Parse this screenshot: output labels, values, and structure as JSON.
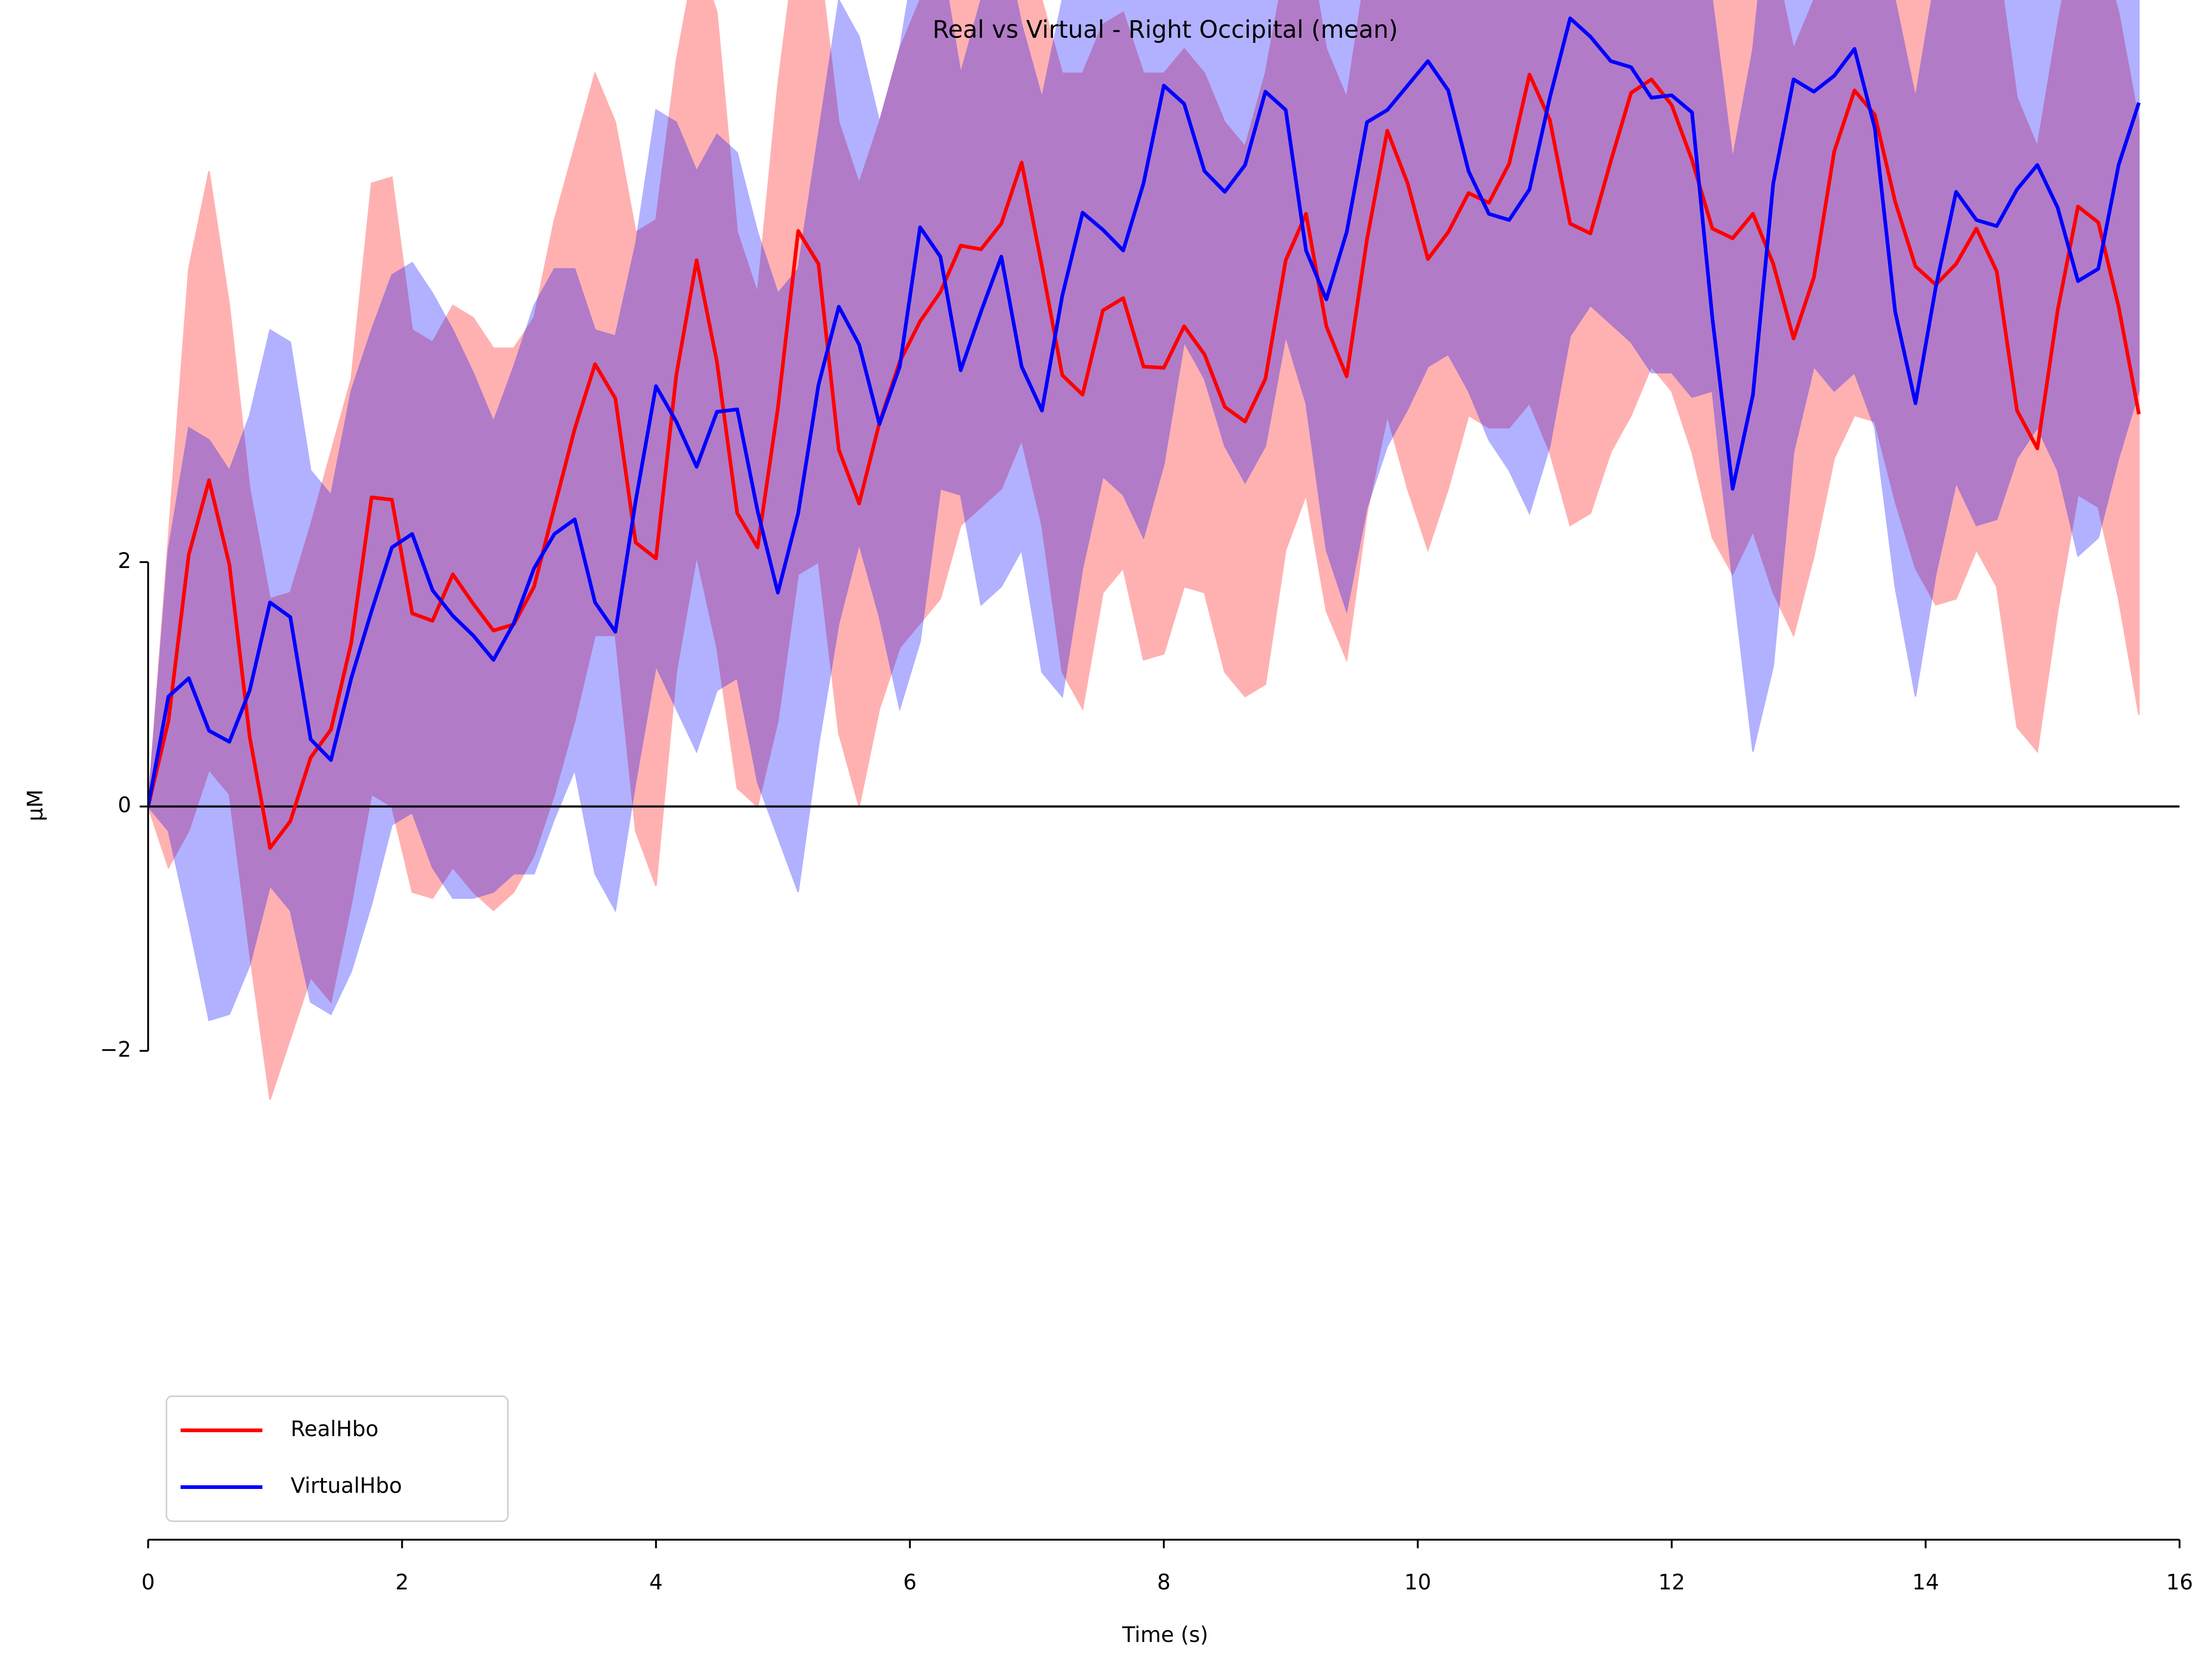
{
  "chart_data": {
    "type": "line",
    "title": "Real vs Virtual - Right Occipital (mean)",
    "xlabel": "Time (s)",
    "ylabel": "µM",
    "x": [
      0,
      0.16,
      0.32,
      0.48,
      0.64,
      0.8,
      0.96,
      1.12,
      1.28,
      1.44,
      1.6,
      1.76,
      1.92,
      2.08,
      2.24,
      2.4,
      2.56,
      2.72,
      2.88,
      3.04,
      3.2,
      3.36,
      3.52,
      3.68,
      3.84,
      4,
      4.16,
      4.32,
      4.48,
      4.64,
      4.8,
      4.96,
      5.12,
      5.28,
      5.44,
      5.6,
      5.76,
      5.92,
      6.08,
      6.24,
      6.4,
      6.56,
      6.72,
      6.88,
      7.04,
      7.2,
      7.36,
      7.52,
      7.68,
      7.84,
      8,
      8.16,
      8.32,
      8.48,
      8.64,
      8.8,
      8.96,
      9.12,
      9.28,
      9.44,
      9.6,
      9.76,
      9.92,
      10.08,
      10.24,
      10.4,
      10.56,
      10.72,
      10.88,
      11.04,
      11.2,
      11.36,
      11.52,
      11.68,
      11.84,
      12,
      12.16,
      12.32,
      12.48,
      12.64,
      12.8,
      12.96,
      13.12,
      13.28,
      13.44,
      13.6,
      13.76,
      13.92,
      14.08,
      14.24,
      14.4,
      14.56,
      14.72,
      14.88,
      15.04,
      15.2,
      15.36,
      15.52,
      15.68
    ],
    "series": [
      {
        "name": "RealHbo",
        "color": "#ff0000",
        "values": [
          0,
          0.7,
          2.06,
          2.67,
          1.98,
          0.57,
          -0.34,
          -0.12,
          0.4,
          0.63,
          1.34,
          2.53,
          2.51,
          1.58,
          1.52,
          1.9,
          1.66,
          1.44,
          1.49,
          1.8,
          2.45,
          3.09,
          3.62,
          3.34,
          2.16,
          2.03,
          3.53,
          4.47,
          3.64,
          2.4,
          2.12,
          3.26,
          4.71,
          4.44,
          2.92,
          2.48,
          3.14,
          3.64,
          3.97,
          4.21,
          4.59,
          4.56,
          4.77,
          5.27,
          4.42,
          3.53,
          3.37,
          4.06,
          4.16,
          3.6,
          3.59,
          3.93,
          3.7,
          3.27,
          3.15,
          3.5,
          4.47,
          4.85,
          3.93,
          3.52,
          4.64,
          5.53,
          5.1,
          4.48,
          4.7,
          5.02,
          4.94,
          5.26,
          5.99,
          5.62,
          4.77,
          4.69,
          5.28,
          5.84,
          5.95,
          5.74,
          5.29,
          4.73,
          4.65,
          4.85,
          4.44,
          3.83,
          4.33,
          5.36,
          5.86,
          5.66,
          4.95,
          4.42,
          4.27,
          4.44,
          4.73,
          4.38,
          3.24,
          2.93,
          4.06,
          4.91,
          4.78,
          4.09,
          3.21
        ],
        "ci_lower": [
          0,
          -0.5,
          -0.2,
          0.3,
          0.1,
          -1.2,
          -2.4,
          -1.9,
          -1.4,
          -1.6,
          -0.8,
          0.1,
          0,
          -0.7,
          -0.75,
          -0.5,
          -0.7,
          -0.85,
          -0.7,
          -0.4,
          0.1,
          0.7,
          1.4,
          1.4,
          -0.2,
          -0.65,
          1.1,
          2.05,
          1.3,
          0.15,
          0,
          0.7,
          1.9,
          2,
          0.6,
          0,
          0.8,
          1.3,
          1.5,
          1.7,
          2.3,
          2.45,
          2.6,
          3,
          2.3,
          1.1,
          0.8,
          1.75,
          1.95,
          1.2,
          1.25,
          1.8,
          1.75,
          1.1,
          0.9,
          1,
          2.1,
          2.55,
          1.6,
          1.2,
          2.4,
          3.2,
          2.6,
          2.1,
          2.6,
          3.2,
          3.1,
          3.1,
          3.3,
          2.9,
          2.3,
          2.4,
          2.9,
          3.2,
          3.6,
          3.4,
          2.9,
          2.2,
          1.9,
          2.25,
          1.75,
          1.4,
          2.05,
          2.85,
          3.2,
          3.15,
          2.5,
          1.95,
          1.65,
          1.7,
          2.1,
          1.8,
          0.65,
          0.45,
          1.6,
          2.55,
          2.45,
          1.7,
          0.75
        ],
        "ci_upper": [
          0,
          2.2,
          4.4,
          5.2,
          4.1,
          2.6,
          1.7,
          1.75,
          2.3,
          2.9,
          3.5,
          5.1,
          5.15,
          3.9,
          3.8,
          4.1,
          4,
          3.75,
          3.75,
          4,
          4.8,
          5.4,
          6,
          5.6,
          4.7,
          4.8,
          6.1,
          7,
          6.5,
          4.7,
          4.2,
          5.9,
          7.2,
          7,
          5.6,
          5.1,
          5.6,
          6.2,
          6.6,
          6.8,
          7,
          6.8,
          6.9,
          7.5,
          6.6,
          6,
          6,
          6.4,
          6.5,
          6,
          6,
          6.2,
          6,
          5.6,
          5.4,
          6,
          6.9,
          7.2,
          6.2,
          5.8,
          6.9,
          7.8,
          7.6,
          6.9,
          7,
          7.2,
          7,
          7.3,
          8.6,
          8.3,
          7.3,
          7.1,
          7.7,
          8.4,
          8.3,
          8.2,
          7.6,
          7.2,
          7.4,
          7.4,
          7,
          6.2,
          6.6,
          7.8,
          8.5,
          8.1,
          7.4,
          6.9,
          6.8,
          6.9,
          7.3,
          7,
          5.8,
          5.4,
          6.4,
          7.3,
          7.1,
          6.5,
          5.6
        ]
      },
      {
        "name": "VirtualHbo",
        "color": "#0000ff",
        "values": [
          0,
          0.9,
          1.05,
          0.62,
          0.53,
          0.95,
          1.67,
          1.55,
          0.55,
          0.38,
          1.05,
          1.6,
          2.12,
          2.23,
          1.77,
          1.56,
          1.4,
          1.2,
          1.5,
          1.95,
          2.23,
          2.35,
          1.67,
          1.43,
          2.5,
          3.44,
          3.15,
          2.78,
          3.23,
          3.25,
          2.42,
          1.75,
          2.4,
          3.45,
          4.09,
          3.78,
          3.13,
          3.6,
          4.74,
          4.5,
          3.57,
          4.05,
          4.5,
          3.6,
          3.24,
          4.18,
          4.86,
          4.72,
          4.55,
          5.1,
          5.9,
          5.75,
          5.2,
          5.03,
          5.25,
          5.85,
          5.7,
          4.55,
          4.15,
          4.7,
          5.6,
          5.7,
          5.9,
          6.1,
          5.86,
          5.2,
          4.85,
          4.8,
          5.05,
          5.8,
          6.45,
          6.3,
          6.1,
          6.05,
          5.8,
          5.82,
          5.68,
          4,
          2.6,
          3.37,
          5.1,
          5.95,
          5.85,
          5.98,
          6.2,
          5.55,
          4.05,
          3.3,
          4.25,
          5.03,
          4.8,
          4.75,
          5.05,
          5.25,
          4.9,
          4.3,
          4.4,
          5.25,
          5.76
        ],
        "ci_lower": [
          0,
          -0.2,
          -0.95,
          -1.75,
          -1.7,
          -1.3,
          -0.65,
          -0.85,
          -1.6,
          -1.7,
          -1.35,
          -0.8,
          -0.15,
          -0.05,
          -0.5,
          -0.75,
          -0.75,
          -0.7,
          -0.55,
          -0.55,
          -0.1,
          0.3,
          -0.55,
          -0.85,
          0.2,
          1.15,
          0.8,
          0.45,
          0.95,
          1.05,
          0.2,
          -0.25,
          -0.7,
          0.5,
          1.5,
          2.15,
          1.55,
          0.8,
          1.35,
          2.6,
          2.55,
          1.65,
          1.8,
          2.1,
          1.1,
          0.9,
          1.95,
          2.7,
          2.55,
          2.2,
          2.8,
          3.8,
          3.5,
          2.95,
          2.65,
          2.95,
          3.85,
          3.3,
          2.1,
          1.6,
          2.45,
          2.95,
          3.25,
          3.6,
          3.7,
          3.4,
          3,
          2.75,
          2.4,
          2.95,
          3.85,
          4.1,
          3.95,
          3.8,
          3.55,
          3.55,
          3.35,
          3.4,
          1.85,
          0.45,
          1.15,
          2.9,
          3.6,
          3.4,
          3.55,
          3.1,
          1.8,
          0.9,
          1.9,
          2.65,
          2.3,
          2.35,
          2.85,
          3.1,
          2.75,
          2.05,
          2.2,
          2.85,
          3.4
        ],
        "ci_upper": [
          0,
          2.1,
          3.1,
          3,
          2.75,
          3.2,
          3.9,
          3.8,
          2.75,
          2.55,
          3.4,
          3.9,
          4.35,
          4.45,
          4.2,
          3.9,
          3.55,
          3.15,
          3.6,
          4.1,
          4.4,
          4.4,
          3.9,
          3.85,
          4.6,
          5.7,
          5.6,
          5.2,
          5.5,
          5.35,
          4.7,
          4.2,
          4.4,
          5.5,
          6.6,
          6.3,
          5.6,
          6.2,
          7.2,
          7,
          6,
          6.6,
          7.2,
          6.4,
          5.8,
          6.6,
          7.5,
          7.3,
          7.2,
          7.6,
          8.3,
          8.1,
          7.6,
          7.3,
          7.6,
          8.3,
          8,
          6.9,
          6.6,
          7.2,
          8,
          8.2,
          8.4,
          8.5,
          8.2,
          7.5,
          7.1,
          7.2,
          7.6,
          8.4,
          9,
          8.8,
          8.5,
          8.6,
          8.3,
          8.4,
          8.2,
          6.6,
          5.3,
          6.2,
          7.8,
          8.6,
          8.4,
          8.7,
          9,
          8.2,
          6.6,
          5.8,
          6.8,
          7.6,
          7.3,
          7.3,
          7.6,
          7.7,
          7.3,
          6.9,
          6.9,
          7.7,
          8.2
        ]
      }
    ],
    "xlim": [
      0,
      16
    ],
    "ylim": [
      -6,
      6.6
    ],
    "xticks": [
      0,
      2,
      4,
      6,
      8,
      10,
      12,
      14,
      16
    ],
    "yticks": [
      {
        "value": -2,
        "label": "−2"
      },
      0,
      2
    ],
    "hline": 0,
    "legend": "lower left"
  }
}
